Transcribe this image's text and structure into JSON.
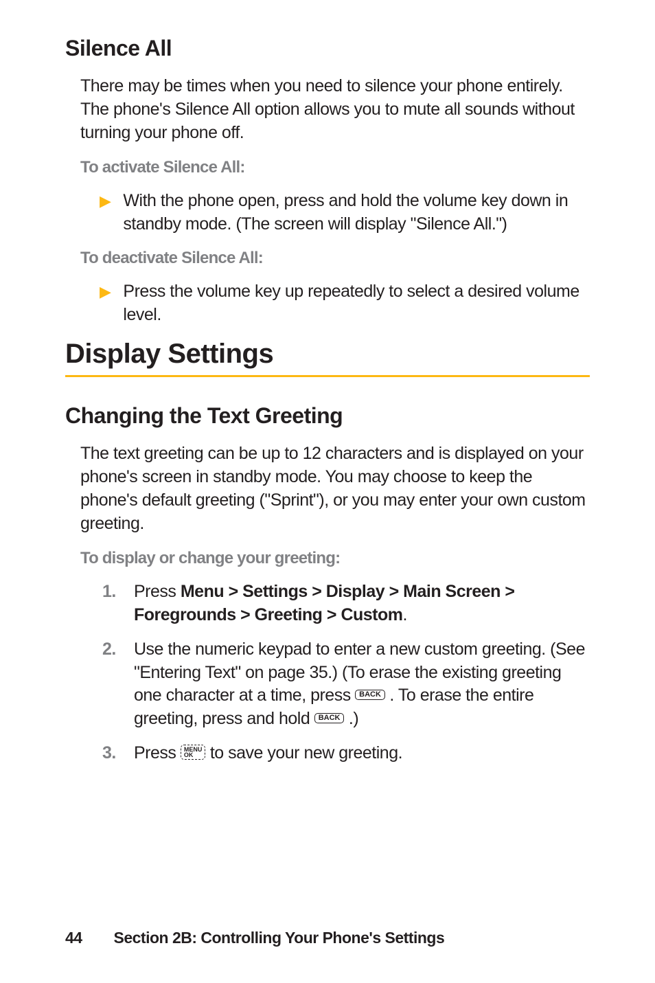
{
  "sections": {
    "silence_all": {
      "heading": "Silence All",
      "intro": "There may be times when you need to silence your phone entirely. The phone's Silence All option allows you to mute all sounds without turning your phone off.",
      "activate_label": "To activate Silence All:",
      "activate_step": "With the phone open, press and hold the volume key down in standby mode. (The screen will display \"Silence All.\")",
      "deactivate_label": "To deactivate Silence All:",
      "deactivate_step": "Press the volume key up repeatedly to select a desired volume level."
    },
    "display_settings": {
      "heading": "Display Settings"
    },
    "text_greeting": {
      "heading": "Changing the Text Greeting",
      "intro": "The text greeting can be up to 12 characters and is displayed on your phone's screen in standby mode. You may choose to keep the phone's default greeting (\"Sprint\"), or you may enter your own custom greeting.",
      "procedure_label": "To display or change your greeting:",
      "step1_a": "Press ",
      "step1_b": "Menu > Settings > Display > Main Screen > Foregrounds > Greeting > Custom",
      "step1_c": ".",
      "step2_a": "Use the numeric keypad to enter a new custom greeting. (See \"Entering Text\" on page 35.) (To erase the existing greeting one character at a time, press ",
      "step2_b": " . To erase the entire greeting, press and hold ",
      "step2_c": " .)",
      "step3_a": "Press ",
      "step3_b": " to save your new greeting."
    }
  },
  "keys": {
    "back": "BACK",
    "menu_top": "MENU",
    "menu_bottom": "OK"
  },
  "numbers": {
    "n1": "1.",
    "n2": "2.",
    "n3": "3."
  },
  "footer": {
    "page": "44",
    "section": "Section 2B: Controlling Your Phone's Settings"
  },
  "colors": {
    "accent": "#fdb813",
    "text": "#231f20",
    "muted": "#808184",
    "background": "#ffffff"
  }
}
